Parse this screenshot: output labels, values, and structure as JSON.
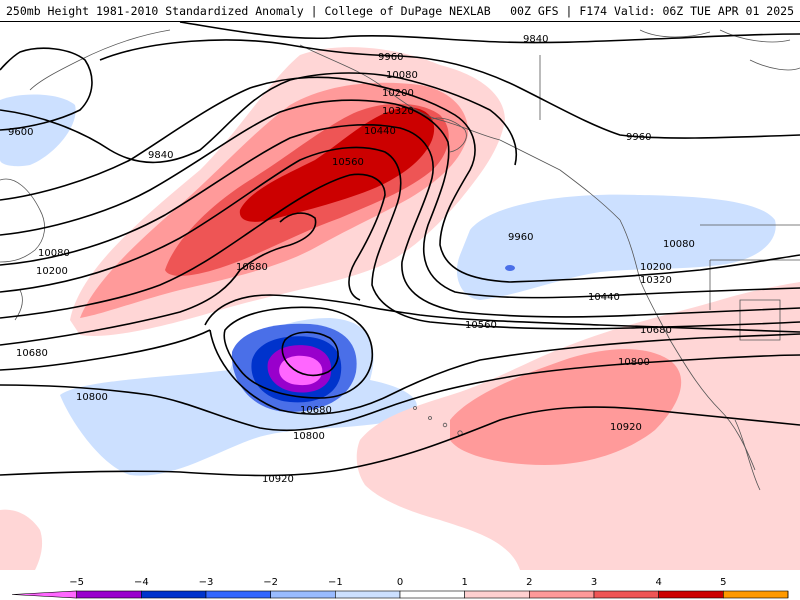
{
  "header": {
    "title_left": "250mb Height 1981-2010 Standardized Anomaly | College of DuPage NEXLAB",
    "title_right": "00Z GFS | F174 Valid: 06Z TUE APR 01 2025"
  },
  "contours": {
    "labels": [
      {
        "text": "9840",
        "id": "c9840-a"
      },
      {
        "text": "9960",
        "id": "c9960-a"
      },
      {
        "text": "10080",
        "id": "c10080-a"
      },
      {
        "text": "10200",
        "id": "c10200-a"
      },
      {
        "text": "10320",
        "id": "c10320-a"
      },
      {
        "text": "10440",
        "id": "c10440-a"
      },
      {
        "text": "10560",
        "id": "c10560-a"
      },
      {
        "text": "9600",
        "id": "c9600"
      },
      {
        "text": "9840",
        "id": "c9840-b"
      },
      {
        "text": "10080",
        "id": "c10080-b"
      },
      {
        "text": "10200",
        "id": "c10200-b"
      },
      {
        "text": "10680",
        "id": "c10680-a"
      },
      {
        "text": "10680",
        "id": "c10680-b"
      },
      {
        "text": "9960",
        "id": "c9960-b"
      },
      {
        "text": "9960",
        "id": "c9960-c"
      },
      {
        "text": "10080",
        "id": "c10080-c"
      },
      {
        "text": "10200",
        "id": "c10200-c"
      },
      {
        "text": "10320",
        "id": "c10320-b"
      },
      {
        "text": "10440",
        "id": "c10440-b"
      },
      {
        "text": "10560",
        "id": "c10560-b"
      },
      {
        "text": "10680",
        "id": "c10680-c"
      },
      {
        "text": "10800",
        "id": "c10800-a"
      },
      {
        "text": "10800",
        "id": "c10800-b"
      },
      {
        "text": "10800",
        "id": "c10800-c"
      },
      {
        "text": "10680",
        "id": "c10680-d"
      },
      {
        "text": "10920",
        "id": "c10920-a"
      },
      {
        "text": "10920",
        "id": "c10920-b"
      }
    ]
  },
  "colorbar": {
    "ticks": [
      "−5",
      "−4",
      "−3",
      "−2",
      "−1",
      "0",
      "1",
      "2",
      "3",
      "4",
      "5"
    ],
    "colors": [
      "#ff66ff",
      "#9900cc",
      "#0033cc",
      "#3366ff",
      "#99bbff",
      "#cce0ff",
      "#ffffff",
      "#ffd0d0",
      "#ff9999",
      "#ee5555",
      "#cc0000",
      "#ff9900",
      "#ffcc00"
    ]
  },
  "colors": {
    "neg1": "#cce0ff",
    "neg2": "#4a6fe8",
    "neg3": "#0033cc",
    "neg4": "#9900cc",
    "neg5": "#ff66ff",
    "pos1": "#ffd6d6",
    "pos2": "#ff9a9a",
    "pos3": "#ee5555",
    "pos4": "#cc0000"
  }
}
